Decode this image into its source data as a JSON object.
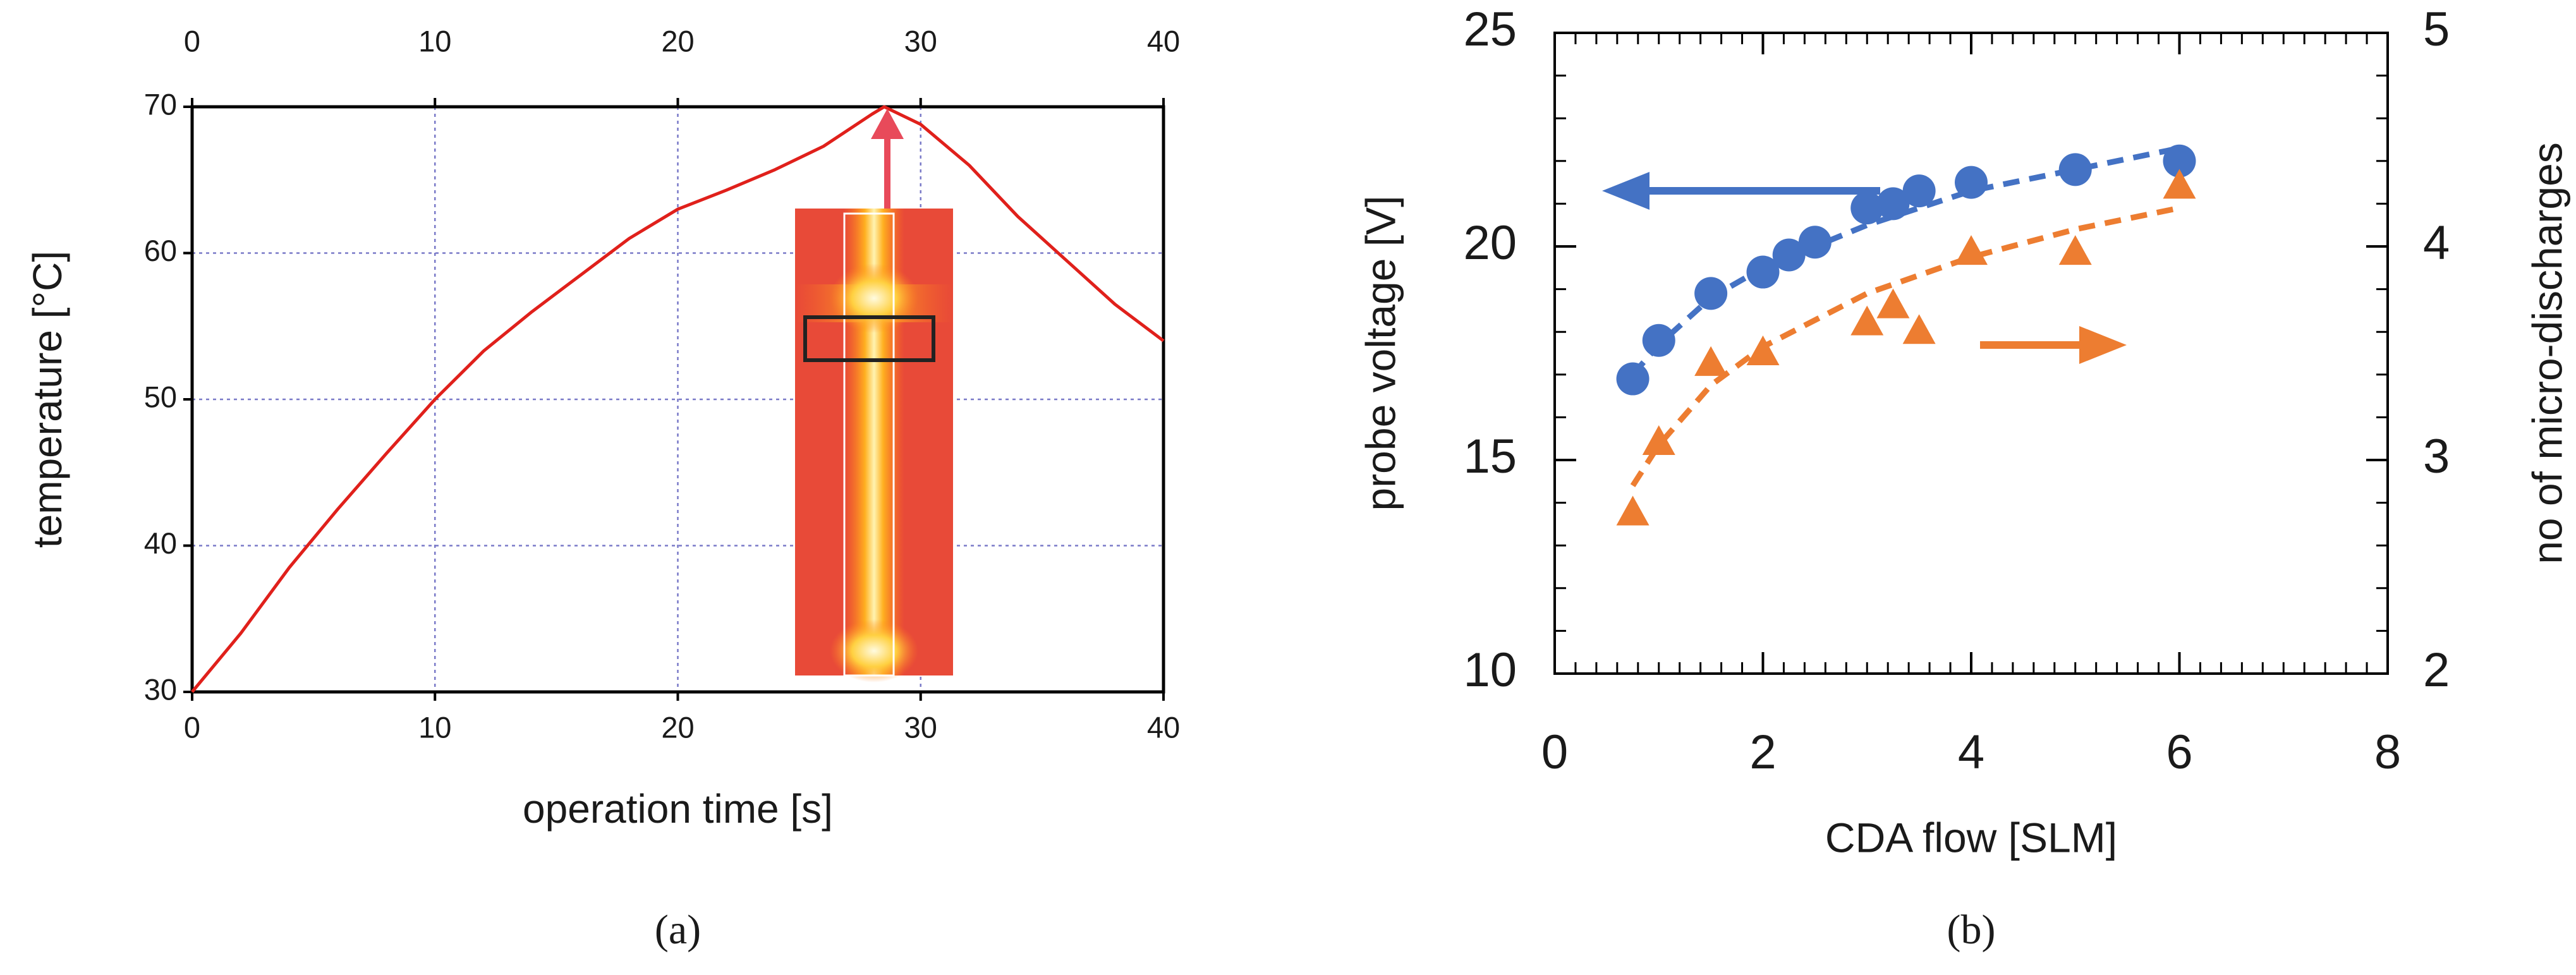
{
  "chart_data": [
    {
      "type": "line",
      "xlabel": "operation time [s]",
      "ylabel": "temperature [°C]",
      "caption": "(a)",
      "x": [
        0,
        2,
        4,
        6,
        8,
        10,
        12,
        14,
        16,
        18,
        20,
        22,
        24,
        26,
        28,
        28.5,
        30,
        32,
        34,
        36,
        38,
        40
      ],
      "series": [
        {
          "color": "#e0201b",
          "values": [
            30,
            34,
            38.5,
            42.5,
            46.3,
            50,
            53.3,
            56,
            58.5,
            61,
            63,
            64.3,
            65.7,
            67.3,
            69.5,
            70,
            68.8,
            66,
            62.5,
            59.5,
            56.5,
            54
          ]
        }
      ],
      "xlim": [
        0,
        40
      ],
      "ylim": [
        30,
        70
      ],
      "xticks": [
        0,
        10,
        20,
        30,
        40
      ],
      "x2ticks": [
        0,
        10,
        20,
        30,
        40
      ],
      "yticks": [
        30,
        40,
        50,
        60,
        70
      ],
      "grid": true
    },
    {
      "type": "scatter",
      "xlabel": "CDA flow [SLM]",
      "ylabel": "probe voltage [V]",
      "y2label": "no of micro-discharges",
      "caption": "(b)",
      "series": [
        {
          "color": "#4472c4",
          "marker": "circle",
          "axis": "y",
          "x": [
            0.75,
            1,
            1.5,
            2,
            2.25,
            2.5,
            3,
            3.25,
            3.5,
            4,
            5,
            6
          ],
          "values": [
            16.9,
            17.8,
            18.9,
            19.4,
            19.8,
            20.1,
            20.9,
            21.0,
            21.3,
            21.5,
            21.8,
            22.0
          ]
        },
        {
          "color": "#ed7d31",
          "marker": "triangle",
          "axis": "y2",
          "x": [
            0.75,
            1,
            1.5,
            2,
            3,
            3.25,
            3.5,
            4,
            5,
            6
          ],
          "values": [
            2.75,
            3.08,
            3.45,
            3.5,
            3.64,
            3.72,
            3.6,
            3.97,
            3.97,
            4.28
          ]
        },
        {
          "color": "#4472c4",
          "line": "dashed",
          "axis": "y",
          "x": [
            0.75,
            1,
            1.5,
            2,
            3,
            4,
            5,
            6
          ],
          "values": [
            17.0,
            17.7,
            18.8,
            19.5,
            20.5,
            21.3,
            21.8,
            22.3
          ]
        },
        {
          "color": "#ed7d31",
          "line": "dashed",
          "axis": "y2",
          "x": [
            0.75,
            1,
            1.5,
            2,
            3,
            4,
            5,
            6
          ],
          "values": [
            2.88,
            3.07,
            3.35,
            3.53,
            3.78,
            3.95,
            4.08,
            4.18
          ]
        }
      ],
      "xlim": [
        0,
        8
      ],
      "ylim": [
        10,
        25
      ],
      "y2lim": [
        2,
        5
      ],
      "xticks": [
        0,
        2,
        4,
        6,
        8
      ],
      "yticks": [
        10,
        15,
        20,
        25
      ],
      "y2ticks": [
        2,
        3,
        4,
        5
      ]
    }
  ]
}
